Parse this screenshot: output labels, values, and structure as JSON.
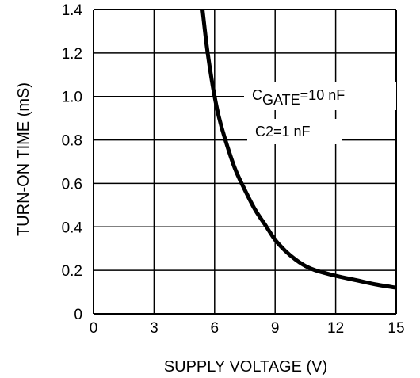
{
  "chart_data": {
    "type": "line",
    "xlabel": "SUPPLY VOLTAGE (V)",
    "ylabel": "TURN-ON TIME (mS)",
    "xlim": [
      0,
      15
    ],
    "ylim": [
      0,
      1.4
    ],
    "x_ticks": [
      0,
      3,
      6,
      9,
      12,
      15
    ],
    "y_ticks": [
      0,
      0.2,
      0.4,
      0.6,
      0.8,
      1.0,
      1.2,
      1.4
    ],
    "x_tick_labels": [
      "0",
      "3",
      "6",
      "9",
      "12",
      "15"
    ],
    "y_tick_labels": [
      "0",
      "0.2",
      "0.4",
      "0.6",
      "0.8",
      "1.0",
      "1.2",
      "1.4"
    ],
    "grid": true,
    "annotations": {
      "cgate_main": "C",
      "cgate_sub": "GATE",
      "cgate_value": "=10 nF",
      "c2": "C2=1 nF"
    },
    "series": [
      {
        "x": [
          5.4,
          5.6,
          5.8,
          6.0,
          6.2,
          6.5,
          7.0,
          7.5,
          8.0,
          8.5,
          9.0,
          9.5,
          10.0,
          10.5,
          11.0,
          12.0,
          13.0,
          14.0,
          15.0
        ],
        "values": [
          1.4,
          1.24,
          1.11,
          1.0,
          0.91,
          0.81,
          0.67,
          0.57,
          0.48,
          0.41,
          0.34,
          0.29,
          0.25,
          0.22,
          0.2,
          0.175,
          0.155,
          0.135,
          0.12
        ]
      }
    ]
  }
}
